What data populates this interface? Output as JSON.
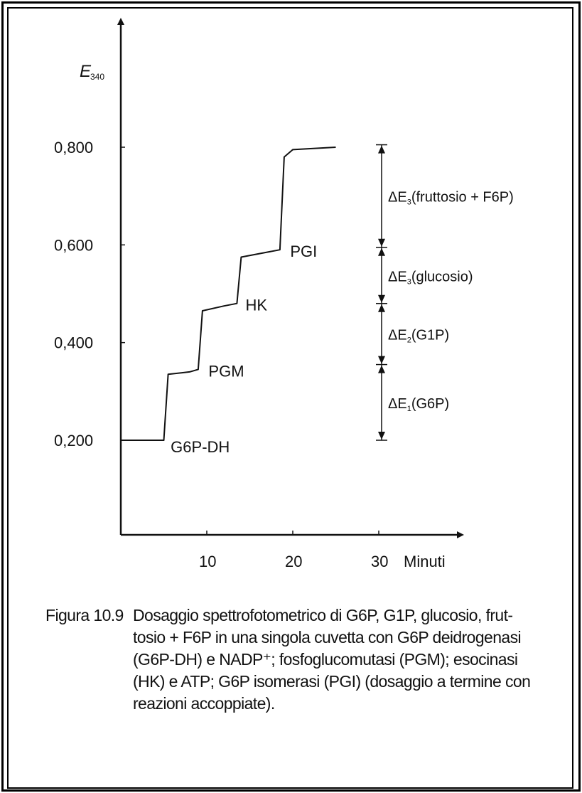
{
  "chart_data": {
    "type": "line",
    "ylabel": "E",
    "ylabel_subscript": "340",
    "xlabel": "Minuti",
    "x_ticks": [
      10,
      20,
      30
    ],
    "y_ticks": [
      "0,200",
      "0,400",
      "0,600",
      "0,800"
    ],
    "y_tick_values": [
      0.2,
      0.4,
      0.6,
      0.8
    ],
    "xlim": [
      0,
      35
    ],
    "ylim": [
      0.0,
      1.05
    ],
    "series": [
      {
        "x": [
          0,
          5,
          5.5,
          8,
          9,
          9.5,
          12,
          13.5,
          14,
          17,
          18.5,
          19,
          20,
          25
        ],
        "y": [
          0.2,
          0.2,
          0.335,
          0.34,
          0.345,
          0.465,
          0.475,
          0.48,
          0.575,
          0.585,
          0.59,
          0.78,
          0.795,
          0.8
        ]
      }
    ],
    "step_labels": [
      {
        "text": "G6P-DH",
        "x": 5.8,
        "y": 0.19
      },
      {
        "text": "PGM",
        "x": 10.2,
        "y": 0.345
      },
      {
        "text": "HK",
        "x": 14.5,
        "y": 0.48
      },
      {
        "text": "PGI",
        "x": 19.7,
        "y": 0.59
      }
    ],
    "delta_annotations": [
      {
        "label": "ΔE",
        "sub": "1",
        "suffix": "(G6P)",
        "from": 0.2,
        "to": 0.355
      },
      {
        "label": "ΔE",
        "sub": "2",
        "suffix": "(G1P)",
        "from": 0.355,
        "to": 0.48
      },
      {
        "label": "ΔE",
        "sub": "3",
        "suffix": "(glucosio)",
        "from": 0.48,
        "to": 0.595
      },
      {
        "label": "ΔE",
        "sub": "3",
        "suffix": "(fruttosio + F6P)",
        "from": 0.595,
        "to": 0.805
      }
    ]
  },
  "caption": {
    "label": "Figura 10.9",
    "text": "Dosaggio spettrofotometrico di G6P, G1P, glucosio, frut-tosio + F6P in una singola cuvetta con G6P deidrogenasi (G6P-DH) e NADP⁺; fosfoglucomutasi (PGM); esocinasi (HK) e ATP; G6P isomerasi (PGI) (dosaggio a termine con reazioni accoppiate)."
  },
  "colors": {
    "ink": "#111111",
    "background": "#ffffff"
  }
}
